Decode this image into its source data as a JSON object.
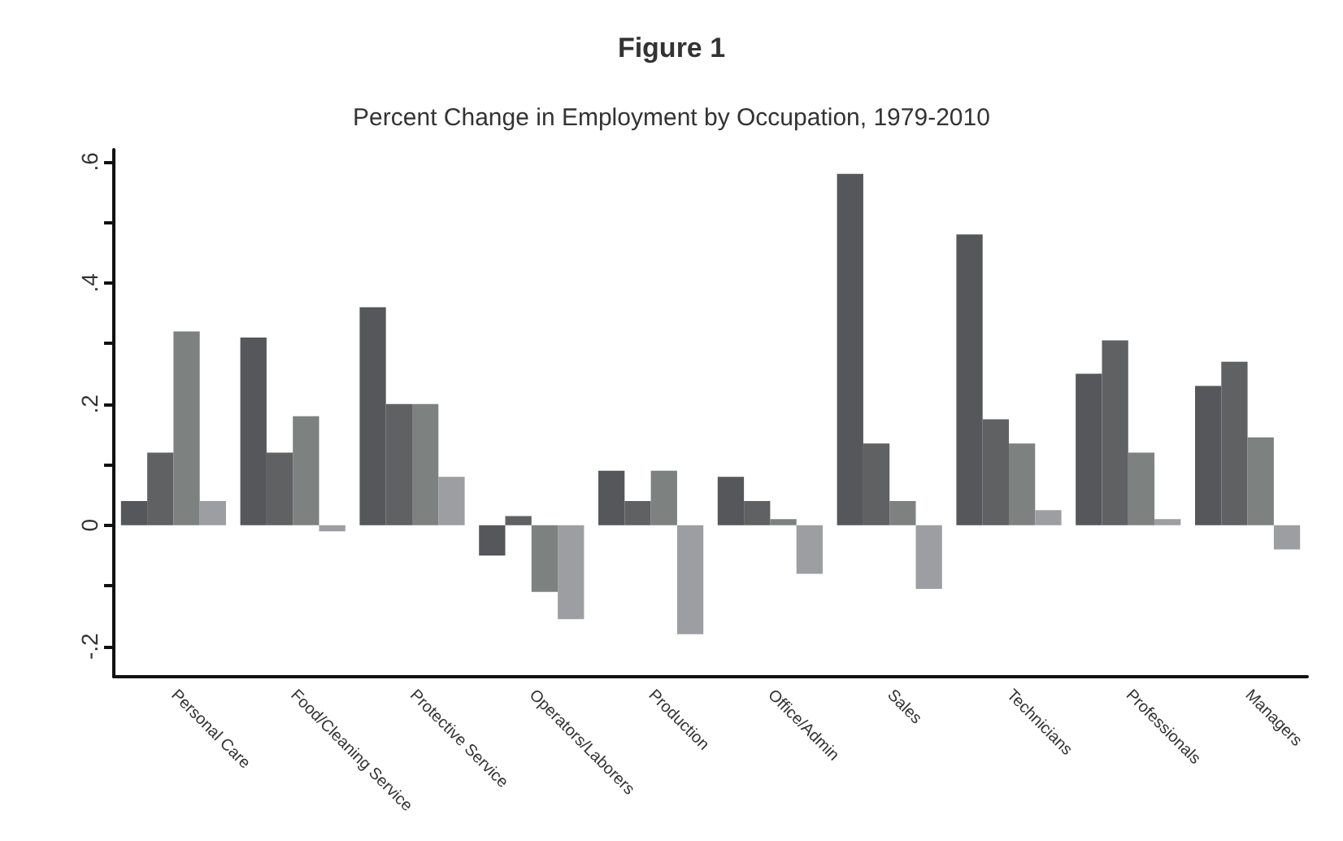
{
  "chart_data": {
    "type": "bar",
    "title": "Figure 1",
    "subtitle": "Percent Change in Employment by Occupation, 1979-2010",
    "categories": [
      "Personal Care",
      "Food/Cleaning Service",
      "Protective Service",
      "Operators/Laborers",
      "Production",
      "Office/Admin",
      "Sales",
      "Technicians",
      "Professionals",
      "Managers"
    ],
    "series": [
      {
        "color": "#55575a",
        "values": [
          0.04,
          0.31,
          0.36,
          -0.05,
          0.09,
          0.08,
          0.58,
          0.48,
          0.25,
          0.23
        ]
      },
      {
        "color": "#606163",
        "values": [
          0.12,
          0.12,
          0.2,
          0.015,
          0.04,
          0.04,
          0.135,
          0.175,
          0.305,
          0.27
        ]
      },
      {
        "color": "#7d8180",
        "values": [
          0.32,
          0.18,
          0.2,
          -0.11,
          0.09,
          0.01,
          0.04,
          0.135,
          0.12,
          0.145
        ]
      },
      {
        "color": "#9d9ea2",
        "values": [
          0.04,
          -0.01,
          0.08,
          -0.155,
          -0.18,
          -0.08,
          -0.105,
          0.025,
          0.01,
          -0.04
        ]
      }
    ],
    "ylim": [
      -0.25,
      0.62
    ],
    "yticks": [
      {
        "value": -0.2,
        "label": "-.2"
      },
      {
        "value": -0.1,
        "label": null
      },
      {
        "value": 0,
        "label": "0"
      },
      {
        "value": 0.1,
        "label": null
      },
      {
        "value": 0.2,
        "label": ".2"
      },
      {
        "value": 0.3,
        "label": null
      },
      {
        "value": 0.4,
        "label": ".4"
      },
      {
        "value": 0.5,
        "label": null
      },
      {
        "value": 0.6,
        "label": ".6"
      }
    ],
    "grid": false
  }
}
